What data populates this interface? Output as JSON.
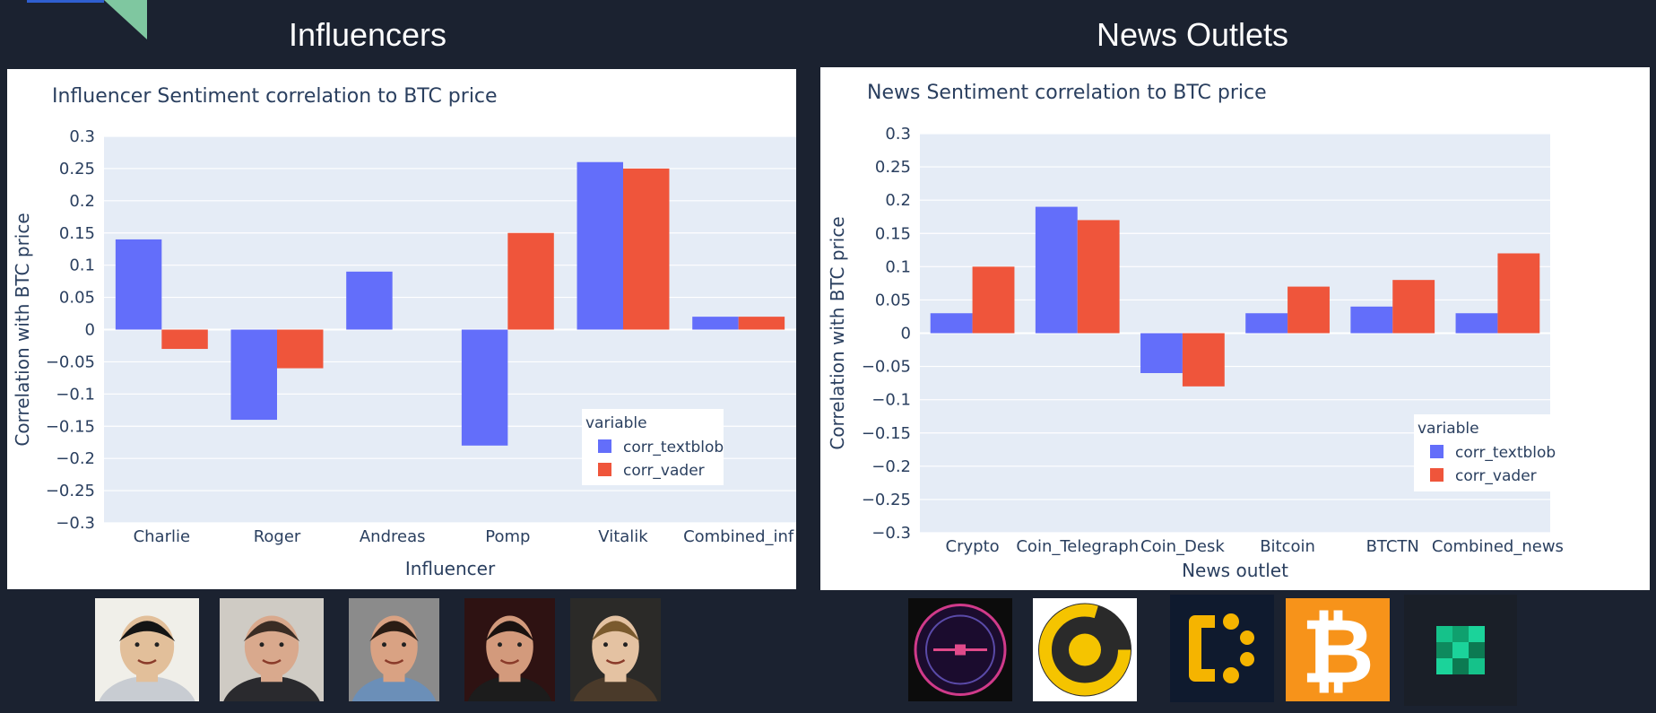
{
  "panels": {
    "left_title": "Influencers",
    "right_title": "News Outlets"
  },
  "chart_data": [
    {
      "type": "bar",
      "title": "Influencer Sentiment correlation to BTC price",
      "xlabel": "Influencer",
      "ylabel": "Correlation with BTC price",
      "ylim": [
        -0.3,
        0.3
      ],
      "yticks": [
        "0.3",
        "0.25",
        "0.2",
        "0.15",
        "0.1",
        "0.05",
        "0",
        "−0.05",
        "−0.1",
        "−0.15",
        "−0.2",
        "−0.25",
        "−0.3"
      ],
      "categories": [
        "Charlie",
        "Roger",
        "Andreas",
        "Pomp",
        "Vitalik",
        "Combined_inf"
      ],
      "series": [
        {
          "name": "corr_textblob",
          "values": [
            0.14,
            -0.14,
            0.09,
            -0.18,
            0.26,
            0.02
          ],
          "color": "#636efa"
        },
        {
          "name": "corr_vader",
          "values": [
            -0.03,
            -0.06,
            0.0,
            0.15,
            0.25,
            0.02
          ],
          "color": "#ef553b"
        }
      ],
      "legend": {
        "title": "variable",
        "placement": "bottom-right"
      },
      "grid": true,
      "plot_bg": "#e5ecf6"
    },
    {
      "type": "bar",
      "title": "News Sentiment correlation to BTC price",
      "xlabel": "News outlet",
      "ylabel": "Correlation with BTC price",
      "ylim": [
        -0.3,
        0.3
      ],
      "yticks": [
        "0.3",
        "0.25",
        "0.2",
        "0.15",
        "0.1",
        "0.05",
        "0",
        "−0.05",
        "−0.1",
        "−0.15",
        "−0.2",
        "−0.25",
        "−0.3"
      ],
      "categories": [
        "Crypto",
        "Coin_Telegraph",
        "Coin_Desk",
        "Bitcoin",
        "BTCTN",
        "Combined_news"
      ],
      "series": [
        {
          "name": "corr_textblob",
          "values": [
            0.03,
            0.19,
            -0.06,
            0.03,
            0.04,
            0.03
          ],
          "color": "#636efa"
        },
        {
          "name": "corr_vader",
          "values": [
            0.1,
            0.17,
            -0.08,
            0.07,
            0.08,
            0.12
          ],
          "color": "#ef553b"
        }
      ],
      "legend": {
        "title": "variable",
        "placement": "bottom-right"
      },
      "grid": true,
      "plot_bg": "#e5ecf6"
    }
  ],
  "images": {
    "influencers": [
      {
        "name": "charlie-photo",
        "bg": "#f0efe9",
        "skin": "#e2bf9a",
        "hair": "#141414",
        "shirt": "#c8ccd2"
      },
      {
        "name": "roger-photo",
        "bg": "#cfcbc4",
        "skin": "#d9a98d",
        "hair": "#3a2c24",
        "shirt": "#2a2a2e"
      },
      {
        "name": "andreas-photo",
        "bg": "#8b8b8b",
        "skin": "#d9a283",
        "hair": "#2a1c14",
        "shirt": "#6b8fb8"
      },
      {
        "name": "pomp-photo",
        "bg": "#2e1212",
        "skin": "#d39a7c",
        "hair": "#1a1210",
        "shirt": "#1c1c1c"
      },
      {
        "name": "vitalik-photo",
        "bg": "#2b2a28",
        "skin": "#e4c2a2",
        "hair": "#7a5a2e",
        "shirt": "#4a3a2a"
      }
    ],
    "news": [
      {
        "name": "bloomberg-logo",
        "kind": "circle-dark",
        "bg": "#0c0c0c"
      },
      {
        "name": "coin-telegraph-logo",
        "kind": "coin-yellow",
        "bg": "#ffffff"
      },
      {
        "name": "coin-desk-logo",
        "kind": "coindesk",
        "bg": "#0f1a2e"
      },
      {
        "name": "bitcoin-logo",
        "kind": "bitcoin",
        "bg": "#f7931a"
      },
      {
        "name": "btctn-logo",
        "kind": "green-blocks",
        "bg": "#1a1f28"
      }
    ]
  }
}
